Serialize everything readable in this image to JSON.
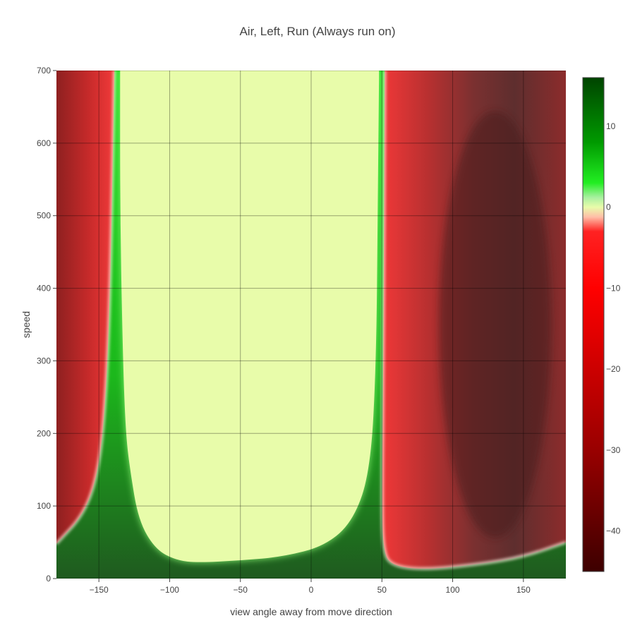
{
  "chart_data": {
    "type": "heatmap",
    "title": "Air, Left, Run (Always run on)",
    "xlabel": "view angle away from move direction",
    "ylabel": "speed",
    "xlim": [
      -180,
      180
    ],
    "ylim": [
      0,
      700
    ],
    "x_ticks": [
      -150,
      -100,
      -50,
      0,
      50,
      100,
      150
    ],
    "x_tick_labels": [
      "−150",
      "−100",
      "−50",
      "0",
      "50",
      "100",
      "150"
    ],
    "y_ticks": [
      0,
      100,
      200,
      300,
      400,
      500,
      600,
      700
    ],
    "y_tick_labels": [
      "0",
      "100",
      "200",
      "300",
      "400",
      "500",
      "600",
      "700"
    ],
    "grid": true,
    "colorbar": {
      "range": [
        -45,
        16
      ],
      "ticks": [
        10,
        0,
        -10,
        -20,
        -30,
        -40
      ],
      "tick_labels": [
        "10",
        "0",
        "−10",
        "−20",
        "−30",
        "−40"
      ],
      "colorscale": [
        [
          -45,
          "#3d0000"
        ],
        [
          -30,
          "#990000"
        ],
        [
          -20,
          "#cc0000"
        ],
        [
          -10,
          "#ff0000"
        ],
        [
          -3,
          "#ff2222"
        ],
        [
          -1.2,
          "#ffbfa8"
        ],
        [
          0,
          "#e8fcaa"
        ],
        [
          1.2,
          "#a8f0a0"
        ],
        [
          3,
          "#22ee22"
        ],
        [
          8,
          "#009a00"
        ],
        [
          16,
          "#004400"
        ]
      ]
    },
    "regions": {
      "left_red_boundary_x": [
        -180,
        -160,
        -150,
        -145,
        -142,
        -140,
        -139
      ],
      "left_red_boundary_y": [
        48,
        90,
        150,
        250,
        400,
        600,
        700
      ],
      "left_yellow_boundary_x": [
        -135,
        -135,
        -133,
        -131,
        -128,
        -122,
        -110,
        -95,
        -80,
        -50,
        -20,
        10,
        30,
        42,
        46,
        47,
        48
      ],
      "left_yellow_boundary_y": [
        700,
        500,
        300,
        200,
        150,
        80,
        40,
        25,
        22,
        25,
        30,
        45,
        80,
        150,
        300,
        500,
        700
      ],
      "right_red_boundary_x": [
        52,
        51,
        50,
        51,
        56,
        80,
        120,
        150,
        180
      ],
      "right_red_boundary_y": [
        700,
        300,
        100,
        40,
        18,
        12,
        20,
        30,
        50
      ],
      "right_dark_center_x": 130,
      "right_dark_value": -38
    }
  }
}
